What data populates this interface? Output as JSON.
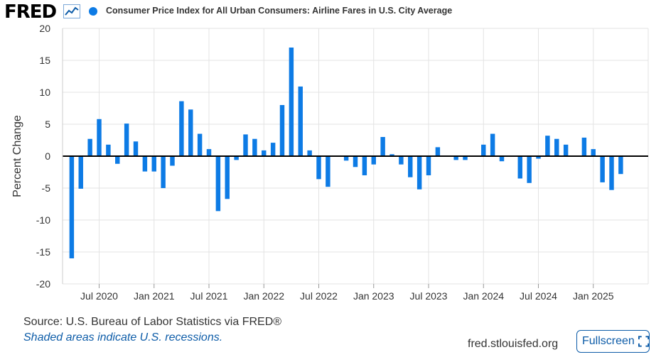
{
  "header": {
    "logo_text": "FRED",
    "logo_icon": "line-chart-icon",
    "legend_label": "Consumer Price Index for All Urban Consumers: Airline Fares in U.S. City Average"
  },
  "colors": {
    "series": "#0d7be5",
    "grid": "#e3e3e3",
    "link": "#0d5ca8",
    "text": "#333333"
  },
  "chart_data": {
    "type": "bar",
    "ylabel": "Percent Change",
    "xlabel": "",
    "ylim": [
      -20,
      20
    ],
    "yticks": [
      20,
      15,
      10,
      5,
      0,
      -5,
      -10,
      -15,
      -20
    ],
    "grid": true,
    "x_start": "2020-03",
    "x_end": "2025-07",
    "xticks": [
      {
        "label": "Jul 2020",
        "date": "2020-07"
      },
      {
        "label": "Jan 2021",
        "date": "2021-01"
      },
      {
        "label": "Jul 2021",
        "date": "2021-07"
      },
      {
        "label": "Jan 2022",
        "date": "2022-01"
      },
      {
        "label": "Jul 2022",
        "date": "2022-07"
      },
      {
        "label": "Jan 2023",
        "date": "2023-01"
      },
      {
        "label": "Jul 2023",
        "date": "2023-07"
      },
      {
        "label": "Jan 2024",
        "date": "2024-01"
      },
      {
        "label": "Jul 2024",
        "date": "2024-07"
      },
      {
        "label": "Jan 2025",
        "date": "2025-01"
      }
    ],
    "series": [
      {
        "name": "Consumer Price Index for All Urban Consumers: Airline Fares in U.S. City Average",
        "points": [
          {
            "date": "2020-04",
            "value": -16.0
          },
          {
            "date": "2020-05",
            "value": -5.1
          },
          {
            "date": "2020-06",
            "value": 2.7
          },
          {
            "date": "2020-07",
            "value": 5.8
          },
          {
            "date": "2020-08",
            "value": 1.8
          },
          {
            "date": "2020-09",
            "value": -1.2
          },
          {
            "date": "2020-10",
            "value": 5.1
          },
          {
            "date": "2020-11",
            "value": 2.3
          },
          {
            "date": "2020-12",
            "value": -2.4
          },
          {
            "date": "2021-01",
            "value": -2.4
          },
          {
            "date": "2021-02",
            "value": -5.0
          },
          {
            "date": "2021-03",
            "value": -1.5
          },
          {
            "date": "2021-04",
            "value": 8.6
          },
          {
            "date": "2021-05",
            "value": 7.3
          },
          {
            "date": "2021-06",
            "value": 3.5
          },
          {
            "date": "2021-07",
            "value": 1.1
          },
          {
            "date": "2021-08",
            "value": -8.6
          },
          {
            "date": "2021-09",
            "value": -6.7
          },
          {
            "date": "2021-10",
            "value": -0.6
          },
          {
            "date": "2021-11",
            "value": 3.4
          },
          {
            "date": "2021-12",
            "value": 2.7
          },
          {
            "date": "2022-01",
            "value": 0.9
          },
          {
            "date": "2022-02",
            "value": 2.1
          },
          {
            "date": "2022-03",
            "value": 8.0
          },
          {
            "date": "2022-04",
            "value": 17.0
          },
          {
            "date": "2022-05",
            "value": 10.9
          },
          {
            "date": "2022-06",
            "value": 0.9
          },
          {
            "date": "2022-07",
            "value": -3.6
          },
          {
            "date": "2022-08",
            "value": -4.8
          },
          {
            "date": "2022-09",
            "value": -0.1
          },
          {
            "date": "2022-10",
            "value": -0.7
          },
          {
            "date": "2022-11",
            "value": -1.7
          },
          {
            "date": "2022-12",
            "value": -3.0
          },
          {
            "date": "2023-01",
            "value": -1.3
          },
          {
            "date": "2023-02",
            "value": 3.0
          },
          {
            "date": "2023-03",
            "value": 0.3
          },
          {
            "date": "2023-04",
            "value": -1.3
          },
          {
            "date": "2023-05",
            "value": -3.3
          },
          {
            "date": "2023-06",
            "value": -5.2
          },
          {
            "date": "2023-07",
            "value": -3.0
          },
          {
            "date": "2023-08",
            "value": 1.4
          },
          {
            "date": "2023-09",
            "value": -0.1
          },
          {
            "date": "2023-10",
            "value": -0.6
          },
          {
            "date": "2023-11",
            "value": -0.6
          },
          {
            "date": "2023-12",
            "value": -0.1
          },
          {
            "date": "2024-01",
            "value": 1.8
          },
          {
            "date": "2024-02",
            "value": 3.5
          },
          {
            "date": "2024-03",
            "value": -0.8
          },
          {
            "date": "2024-04",
            "value": -0.1
          },
          {
            "date": "2024-05",
            "value": -3.5
          },
          {
            "date": "2024-06",
            "value": -4.2
          },
          {
            "date": "2024-07",
            "value": -0.4
          },
          {
            "date": "2024-08",
            "value": 3.2
          },
          {
            "date": "2024-09",
            "value": 2.7
          },
          {
            "date": "2024-10",
            "value": 1.8
          },
          {
            "date": "2024-11",
            "value": -0.1
          },
          {
            "date": "2024-12",
            "value": 2.9
          },
          {
            "date": "2025-01",
            "value": 1.1
          },
          {
            "date": "2025-02",
            "value": -4.1
          },
          {
            "date": "2025-03",
            "value": -5.3
          },
          {
            "date": "2025-04",
            "value": -2.8
          }
        ]
      }
    ]
  },
  "footer": {
    "source": "Source: U.S. Bureau of Labor Statistics via FRED®",
    "note": "Shaded areas indicate U.S. recessions.",
    "url": "fred.stlouisfed.org",
    "fullscreen_label": "Fullscreen",
    "fullscreen_icon": "expand-icon"
  }
}
